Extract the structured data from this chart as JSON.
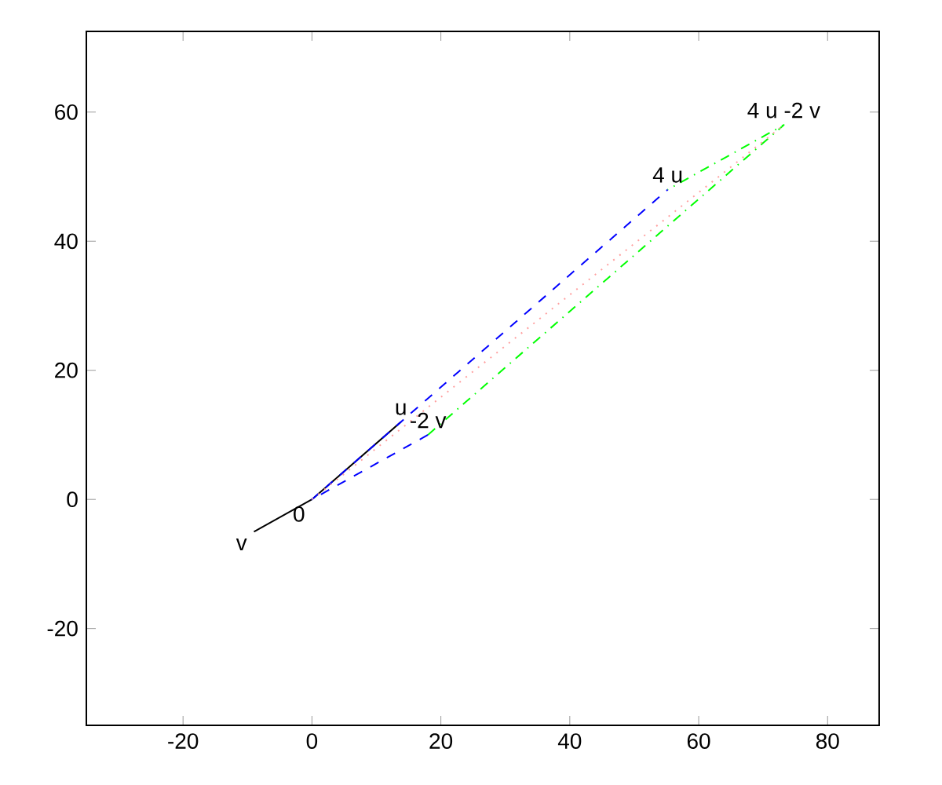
{
  "chart_data": {
    "type": "line",
    "xlim": [
      -35,
      88
    ],
    "ylim": [
      -35,
      72.5
    ],
    "xticks": [
      -20,
      0,
      20,
      40,
      60,
      80
    ],
    "yticks": [
      -20,
      0,
      20,
      40,
      60
    ],
    "marker": "none",
    "series": [
      {
        "color": "#000000",
        "line_style": "solid",
        "x": [
          -9,
          0,
          13.8
        ],
        "values": [
          -5,
          0,
          12
        ]
      },
      {
        "color": "#0000ff",
        "line_style": "dashed",
        "x": [
          18,
          0,
          55.2
        ],
        "values": [
          10,
          0,
          48
        ]
      },
      {
        "color": "#00ff00",
        "line_style": "dashdot",
        "x": [
          18,
          73.2,
          55.2
        ],
        "values": [
          10,
          58,
          48
        ]
      },
      {
        "color": "#ffa0a0",
        "line_style": "dotted",
        "x": [
          0,
          73.2
        ],
        "values": [
          0,
          58
        ]
      }
    ],
    "annotations": [
      {
        "text": "0",
        "x": 0,
        "y": 0
      },
      {
        "text": "u",
        "x": 13.8,
        "y": 12
      },
      {
        "text": "v",
        "x": -9,
        "y": -5
      },
      {
        "text": "-2 v",
        "x": 18,
        "y": 10
      },
      {
        "text": "4 u",
        "x": 55.2,
        "y": 48
      },
      {
        "text": "4 u -2 v",
        "x": 73.2,
        "y": 58
      }
    ]
  }
}
